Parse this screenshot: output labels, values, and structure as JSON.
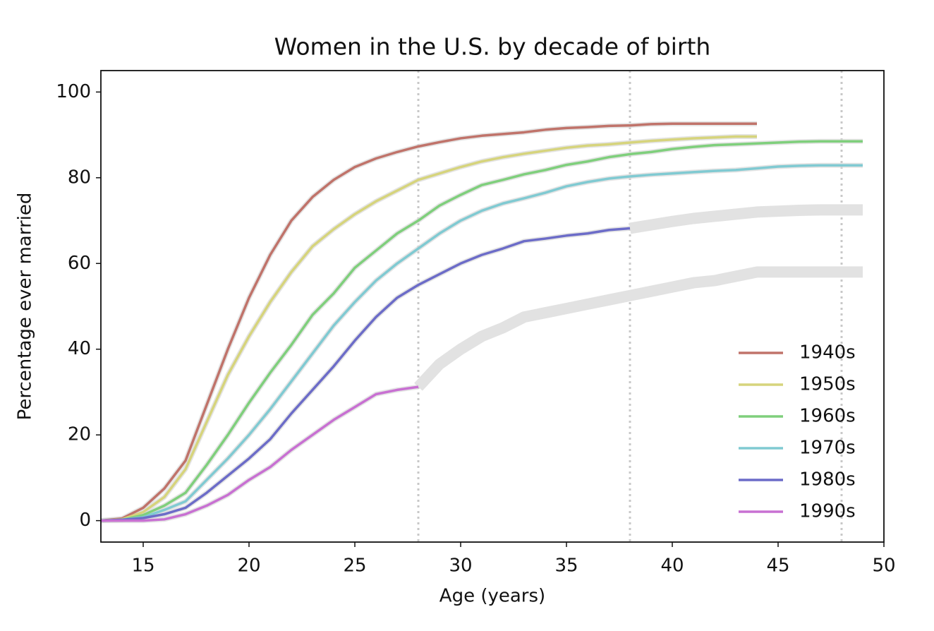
{
  "chart_data": {
    "type": "line",
    "title": "Women in the U.S. by decade of birth",
    "xlabel": "Age (years)",
    "ylabel": "Percentage ever married",
    "x": [
      13,
      14,
      15,
      16,
      17,
      18,
      19,
      20,
      21,
      22,
      23,
      24,
      25,
      26,
      27,
      28,
      29,
      30,
      31,
      32,
      33,
      34,
      35,
      36,
      37,
      38,
      39,
      40,
      41,
      42,
      43,
      44,
      45,
      46,
      47,
      48,
      49
    ],
    "series": [
      {
        "name": "1940s",
        "color": "#c0736a",
        "values": [
          0,
          0.5,
          3,
          7.5,
          14,
          27,
          40,
          52,
          62,
          70,
          75.5,
          79.5,
          82.5,
          84.5,
          86,
          87.3,
          88.3,
          89.2,
          89.8,
          90.2,
          90.6,
          91.2,
          91.6,
          91.8,
          92.1,
          92.2,
          92.5,
          92.6,
          92.6,
          92.6,
          92.6,
          92.6,
          null,
          null,
          null,
          null,
          null
        ]
      },
      {
        "name": "1950s",
        "color": "#d6d47c",
        "values": [
          0,
          0.3,
          2,
          5.5,
          12,
          23,
          34,
          43,
          51,
          58,
          64,
          68,
          71.5,
          74.5,
          77,
          79.5,
          81,
          82.5,
          83.8,
          84.8,
          85.6,
          86.3,
          87,
          87.5,
          87.8,
          88.2,
          88.6,
          88.9,
          89.2,
          89.4,
          89.6,
          89.6,
          null,
          null,
          null,
          null,
          null
        ]
      },
      {
        "name": "1960s",
        "color": "#7fcf7c",
        "values": [
          0,
          0.2,
          1.3,
          3.5,
          6.5,
          13,
          20,
          27.5,
          34.5,
          41,
          48,
          53,
          59,
          63,
          67,
          70,
          73.5,
          76,
          78.3,
          79.5,
          80.8,
          81.8,
          83,
          83.8,
          84.8,
          85.5,
          86,
          86.7,
          87.2,
          87.6,
          87.8,
          88,
          88.2,
          88.4,
          88.5,
          88.5,
          88.5
        ]
      },
      {
        "name": "1970s",
        "color": "#80cad2",
        "values": [
          0,
          0.2,
          0.8,
          2.5,
          4.5,
          9.5,
          14.5,
          20,
          26,
          32.5,
          39,
          45.5,
          51,
          56,
          60,
          63.5,
          67,
          70,
          72.3,
          74,
          75.2,
          76.5,
          78,
          79,
          79.8,
          80.3,
          80.7,
          81,
          81.3,
          81.6,
          81.8,
          82.2,
          82.6,
          82.8,
          82.9,
          82.9,
          82.9
        ]
      },
      {
        "name": "1980s",
        "color": "#6c6cc8",
        "values": [
          0,
          0.2,
          0.6,
          1.5,
          3,
          6.5,
          10.5,
          14.5,
          19,
          25,
          30.5,
          36,
          42,
          47.5,
          52,
          55,
          57.5,
          60,
          62,
          63.5,
          65.2,
          65.8,
          66.5,
          67,
          67.8,
          68.2,
          null,
          null,
          null,
          null,
          null,
          null,
          null,
          null,
          null,
          null,
          null
        ]
      },
      {
        "name": "1990s",
        "color": "#c870d2",
        "values": [
          0,
          0,
          0,
          0.3,
          1.5,
          3.5,
          6,
          9.5,
          12.5,
          16.5,
          20,
          23.5,
          26.5,
          29.5,
          30.5,
          31.2,
          null,
          null,
          null,
          null,
          null,
          null,
          null,
          null,
          null,
          null,
          null,
          null,
          null,
          null,
          null,
          null,
          null,
          null,
          null,
          null,
          null
        ]
      }
    ],
    "predictions": [
      {
        "color": "#e2e2e2",
        "values": [
          null,
          null,
          null,
          null,
          null,
          null,
          null,
          null,
          null,
          null,
          null,
          null,
          null,
          null,
          null,
          null,
          null,
          null,
          null,
          null,
          null,
          null,
          null,
          null,
          null,
          68.2,
          69,
          69.8,
          70.5,
          71,
          71.5,
          72,
          72.2,
          72.4,
          72.5,
          72.5,
          72.5
        ]
      },
      {
        "color": "#e2e2e2",
        "values": [
          null,
          null,
          null,
          null,
          null,
          null,
          null,
          null,
          null,
          null,
          null,
          null,
          null,
          null,
          null,
          31.2,
          36.5,
          40,
          43,
          45,
          47.5,
          48.5,
          49.5,
          50.5,
          51.5,
          52.5,
          53.5,
          54.5,
          55.5,
          56,
          57,
          58,
          58,
          58,
          58,
          58,
          58
        ]
      }
    ],
    "vlines": [
      28,
      38,
      48
    ],
    "xlim": [
      13,
      50
    ],
    "ylim": [
      -5,
      105
    ],
    "xticks": [
      15,
      20,
      25,
      30,
      35,
      40,
      45,
      50
    ],
    "yticks": [
      0,
      20,
      40,
      60,
      80,
      100
    ],
    "legend": "lower right"
  }
}
